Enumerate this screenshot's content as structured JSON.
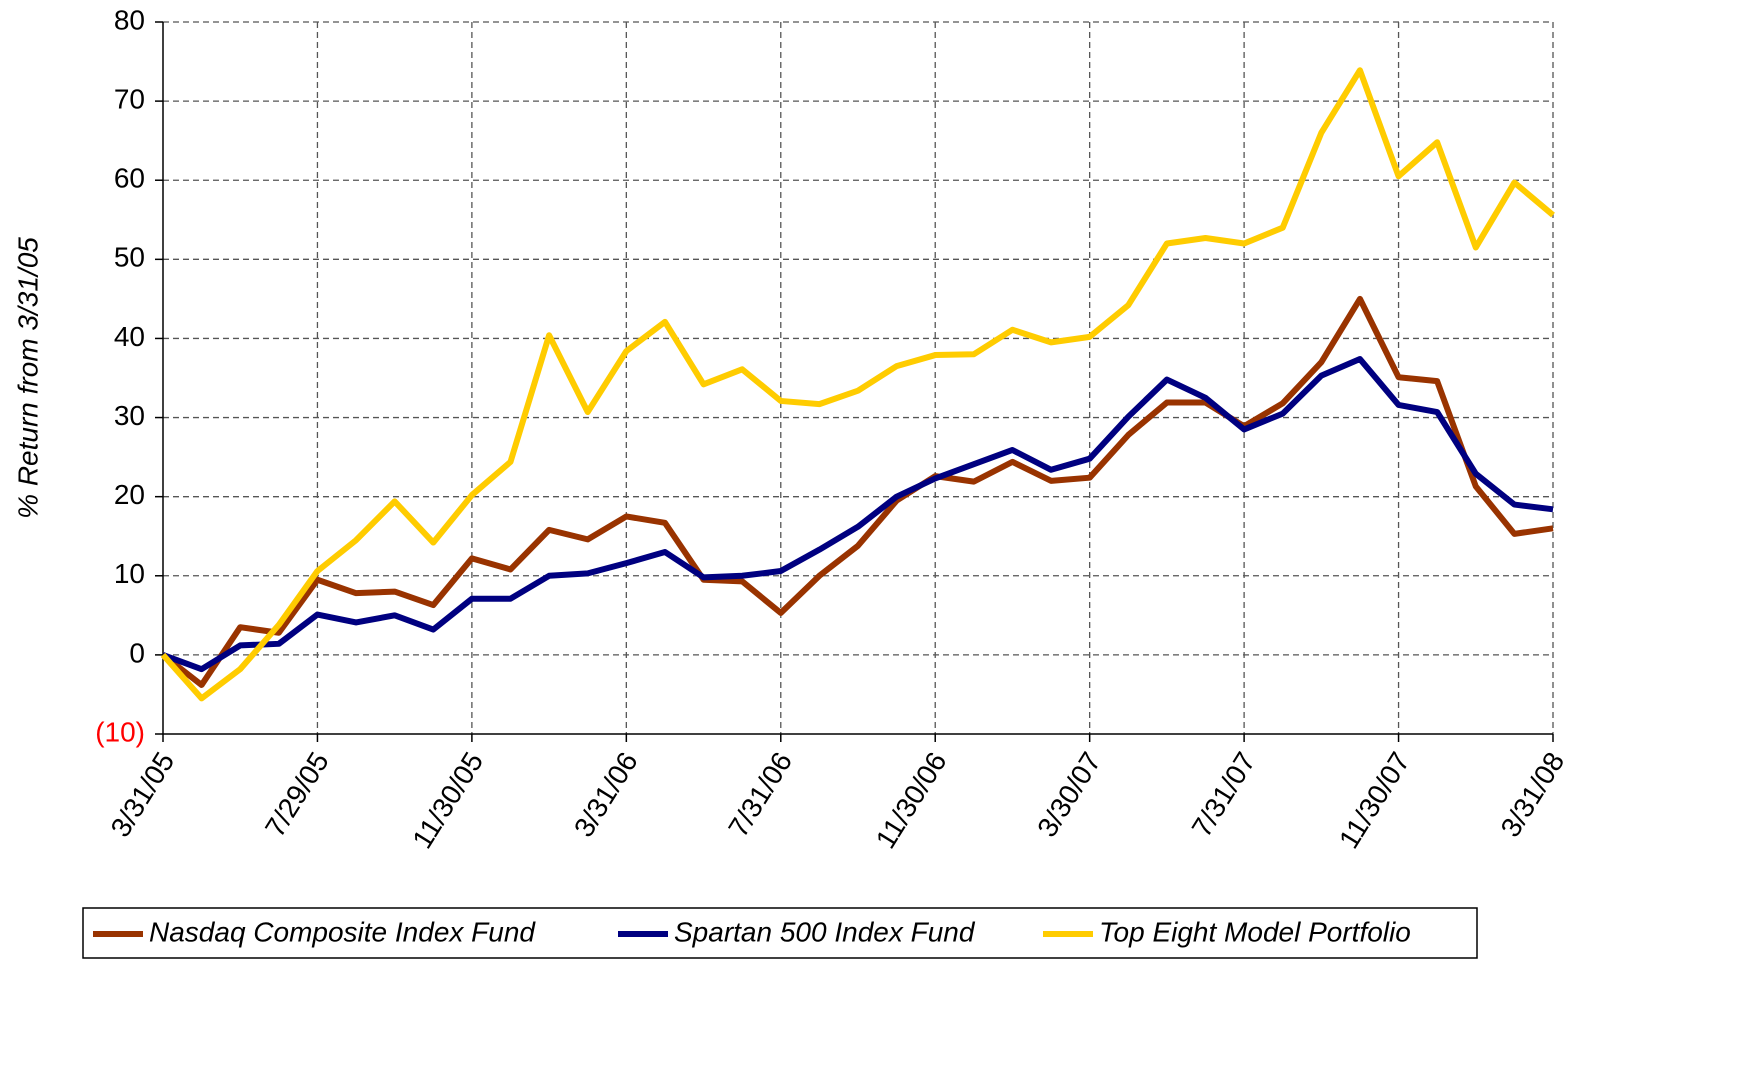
{
  "chart_data": {
    "type": "line",
    "y_label": "% Return from 3/31/05",
    "categories": [
      "3/31/05",
      null,
      null,
      null,
      "7/29/05",
      null,
      null,
      null,
      "11/30/05",
      null,
      null,
      null,
      "3/31/06",
      null,
      null,
      null,
      "7/31/06",
      null,
      null,
      null,
      "11/30/06",
      null,
      null,
      null,
      "3/30/07",
      null,
      null,
      null,
      "7/31/07",
      null,
      null,
      null,
      "11/30/07",
      null,
      null,
      null,
      "3/31/08"
    ],
    "series": [
      {
        "name": "Nasdaq Composite Index Fund",
        "color": "#993300",
        "values": [
          0,
          -3.8,
          3.5,
          2.8,
          9.5,
          7.8,
          8,
          6.3,
          12.2,
          10.8,
          15.8,
          14.6,
          17.5,
          16.7,
          9.5,
          9.3,
          5.3,
          10,
          13.8,
          19.5,
          22.6,
          21.9,
          24.4,
          22,
          22.4,
          27.8,
          31.9,
          31.9,
          28.9,
          31.8,
          37,
          45,
          35.1,
          34.6,
          21.3,
          15.3,
          16
        ]
      },
      {
        "name": "Spartan 500 Index Fund",
        "color": "#000080",
        "values": [
          0,
          -1.8,
          1.2,
          1.4,
          5.1,
          4.1,
          5,
          3.2,
          7.1,
          7.1,
          10,
          10.3,
          11.6,
          13,
          9.8,
          10,
          10.6,
          13.3,
          16.2,
          20,
          22.3,
          24.1,
          25.9,
          23.4,
          24.8,
          30.1,
          34.8,
          32.5,
          28.5,
          30.5,
          35.3,
          37.4,
          31.6,
          30.7,
          22.9,
          19,
          18.4
        ]
      },
      {
        "name": "Top Eight Model Portfolio",
        "color": "#ffcc00",
        "values": [
          0,
          -5.5,
          -1.8,
          3.8,
          10.6,
          14.5,
          19.4,
          14.2,
          20.2,
          24.4,
          40.4,
          30.7,
          38.4,
          42.1,
          34.2,
          36.1,
          32.1,
          31.7,
          33.4,
          36.5,
          37.9,
          38,
          41.1,
          39.5,
          40.2,
          44.2,
          52,
          52.7,
          52,
          54,
          66,
          73.9,
          60.5,
          64.8,
          51.5,
          59.7,
          55.6
        ]
      }
    ],
    "ylim": [
      -10,
      80
    ],
    "yticks": [
      {
        "value": -10,
        "label": "(10)"
      },
      0,
      10,
      20,
      30,
      40,
      50,
      60,
      70,
      80
    ],
    "negative_tick_color": "#ff0000",
    "grid": true,
    "legend": "bottom"
  }
}
